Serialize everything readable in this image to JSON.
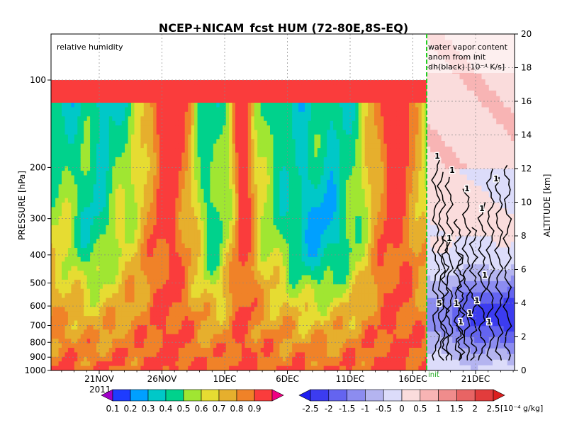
{
  "chart_data": {
    "type": "heatmap",
    "title": "NCEP+NICAM_fcst HUM (72-80E,8S-EQ)",
    "left_panel": {
      "label": "relative humidity",
      "ylabel": "PRESSURE [hPa]",
      "pressure_ticks": [
        "100",
        "200",
        "300",
        "400",
        "500",
        "600",
        "700",
        "800",
        "900",
        "1000"
      ],
      "time_ticks": [
        "21NOV",
        "26NOV",
        "1DEC",
        "6DEC",
        "11DEC",
        "16DEC"
      ],
      "year_label": "2011",
      "colorbar": {
        "levels": [
          "0.1",
          "0.2",
          "0.3",
          "0.4",
          "0.5",
          "0.6",
          "0.7",
          "0.8",
          "0.9"
        ],
        "colors": [
          "#a000c8",
          "#1e3cff",
          "#00a0ff",
          "#00c8c8",
          "#00d28c",
          "#a0e632",
          "#e6dc32",
          "#e6af2d",
          "#f08228",
          "#fa3c3c",
          "#f00082"
        ]
      }
    },
    "right_panel": {
      "label_lines": [
        "water vapor content",
        "anom from init",
        "dh(black) [10⁻⁴ K/s]"
      ],
      "ylabel": "ALTITUDE [km]",
      "altitude_ticks": [
        "0",
        "2",
        "4",
        "6",
        "8",
        "10",
        "12",
        "14",
        "16",
        "18",
        "20"
      ],
      "time_ticks": [
        "21DEC"
      ],
      "init_label": "init",
      "contour_labels": [
        "1",
        "1",
        "1",
        "1",
        "1",
        "1",
        "1",
        "1",
        "1",
        "5",
        "1",
        "1",
        "1"
      ],
      "colorbar": {
        "levels": [
          "-2.5",
          "-2",
          "-1.5",
          "-1",
          "-0.5",
          "0",
          "0.5",
          "1",
          "1.5",
          "2",
          "2.5"
        ],
        "unit": "[10⁻⁴ g/kg]",
        "colors": [
          "#1e1ef0",
          "#3c3cf0",
          "#6464f0",
          "#8c8cf0",
          "#b4b4f0",
          "#dcdcfa",
          "#fadcdc",
          "#f8b4b4",
          "#f08c8c",
          "#e86464",
          "#e23c3c",
          "#dc1e1e"
        ]
      }
    }
  }
}
